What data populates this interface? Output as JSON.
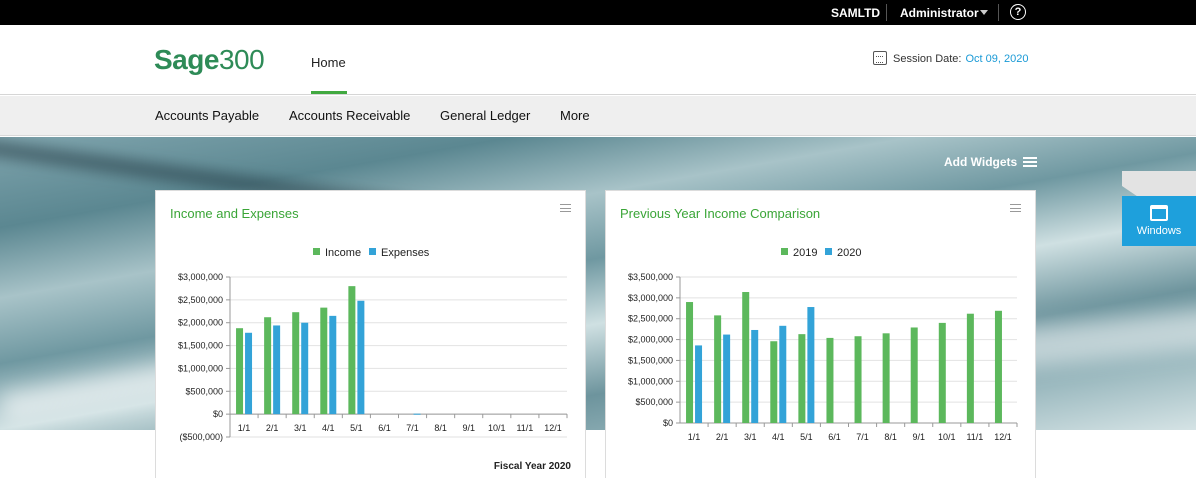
{
  "topbar": {
    "company": "SAMLTD",
    "user": "Administrator",
    "help_glyph": "?"
  },
  "header": {
    "logo_word": "Sage",
    "logo_number": "300",
    "home_tab": "Home",
    "session_label": "Session Date:",
    "session_date": "Oct 09, 2020"
  },
  "nav": {
    "items": [
      "Accounts Payable",
      "Accounts Receivable",
      "General Ledger",
      "More"
    ]
  },
  "dashboard": {
    "add_widgets": "Add Widgets",
    "windows": "Windows"
  },
  "widgets": [
    {
      "title": "Income and Expenses",
      "footnote": "Fiscal Year 2020"
    },
    {
      "title": "Previous Year Income Comparison",
      "footnote": ""
    }
  ],
  "colors": {
    "green": "#5cb85c",
    "blue": "#33a3d8",
    "accent_link": "#1a9ad6",
    "title_green": "#3aa537",
    "windows_tab": "#1ea0dc"
  },
  "chart_data": [
    {
      "type": "bar",
      "title": "",
      "categories": [
        "1/1",
        "2/1",
        "3/1",
        "4/1",
        "5/1",
        "6/1",
        "7/1",
        "8/1",
        "9/1",
        "10/1",
        "11/1",
        "12/1"
      ],
      "series": [
        {
          "name": "Income",
          "color": "#5cb85c",
          "values": [
            1880000,
            2120000,
            2230000,
            2330000,
            2800000,
            0,
            0,
            0,
            0,
            0,
            0,
            0
          ]
        },
        {
          "name": "Expenses",
          "color": "#33a3d8",
          "values": [
            1780000,
            1940000,
            2000000,
            2150000,
            2480000,
            0,
            10000,
            0,
            0,
            0,
            0,
            0
          ]
        }
      ],
      "ylim": [
        -500000,
        3000000
      ],
      "yticks": [
        -500000,
        0,
        500000,
        1000000,
        1500000,
        2000000,
        2500000,
        3000000
      ],
      "ytick_labels": [
        "($500,000)",
        "$0",
        "$500,000",
        "$1,000,000",
        "$1,500,000",
        "$2,000,000",
        "$2,500,000",
        "$3,000,000"
      ],
      "grid": true,
      "legend": "top-center",
      "xlabel": "",
      "ylabel": ""
    },
    {
      "type": "bar",
      "title": "",
      "categories": [
        "1/1",
        "2/1",
        "3/1",
        "4/1",
        "5/1",
        "6/1",
        "7/1",
        "8/1",
        "9/1",
        "10/1",
        "11/1",
        "12/1"
      ],
      "series": [
        {
          "name": "2019",
          "color": "#5cb85c",
          "values": [
            2900000,
            2580000,
            3140000,
            1960000,
            2130000,
            2040000,
            2080000,
            2150000,
            2290000,
            2400000,
            2620000,
            2690000
          ]
        },
        {
          "name": "2020",
          "color": "#33a3d8",
          "values": [
            1860000,
            2120000,
            2230000,
            2330000,
            2780000,
            0,
            0,
            0,
            0,
            0,
            0,
            0
          ]
        }
      ],
      "ylim": [
        0,
        3500000
      ],
      "yticks": [
        0,
        500000,
        1000000,
        1500000,
        2000000,
        2500000,
        3000000,
        3500000
      ],
      "ytick_labels": [
        "$0",
        "$500,000",
        "$1,000,000",
        "$1,500,000",
        "$2,000,000",
        "$2,500,000",
        "$3,000,000",
        "$3,500,000"
      ],
      "grid": true,
      "legend": "top-center",
      "xlabel": "",
      "ylabel": ""
    }
  ]
}
